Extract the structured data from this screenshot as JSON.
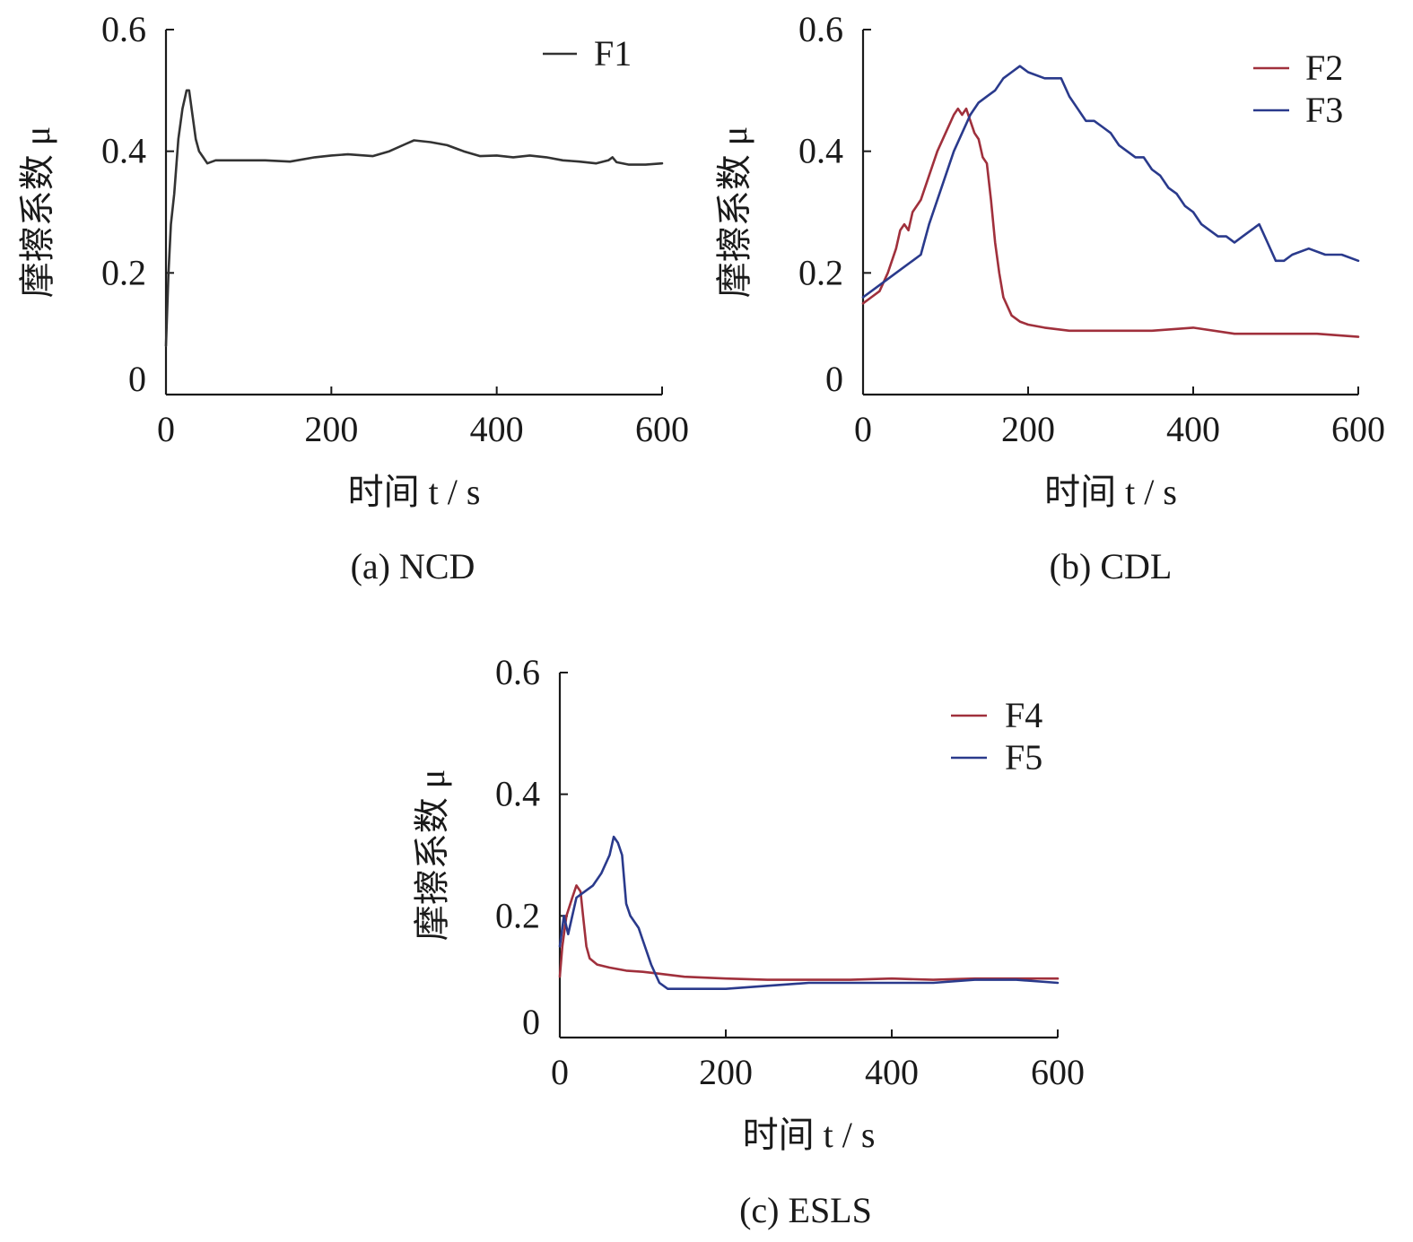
{
  "chart_data": [
    {
      "type": "line",
      "caption": "(a) NCD",
      "xlabel": "时间 t / s",
      "ylabel": "摩擦系数 μ",
      "xlim": [
        0,
        600
      ],
      "ylim": [
        0,
        0.6
      ],
      "x_ticks": [
        0,
        200,
        400,
        600
      ],
      "y_ticks": [
        0,
        0.2,
        0.4,
        0.6
      ],
      "x_tick_labels": [
        "0",
        "200",
        "400",
        "600"
      ],
      "y_tick_labels": [
        "0",
        "0.2",
        "0.4",
        "0.6"
      ],
      "grid": false,
      "legend_position": "top-right",
      "series": [
        {
          "name": "F1",
          "color": "#333333",
          "points": [
            [
              0,
              0.08
            ],
            [
              3,
              0.2
            ],
            [
              6,
              0.28
            ],
            [
              10,
              0.33
            ],
            [
              15,
              0.42
            ],
            [
              20,
              0.47
            ],
            [
              25,
              0.5
            ],
            [
              28,
              0.5
            ],
            [
              32,
              0.46
            ],
            [
              36,
              0.42
            ],
            [
              40,
              0.4
            ],
            [
              45,
              0.39
            ],
            [
              50,
              0.38
            ],
            [
              60,
              0.385
            ],
            [
              80,
              0.385
            ],
            [
              100,
              0.385
            ],
            [
              120,
              0.385
            ],
            [
              150,
              0.383
            ],
            [
              180,
              0.39
            ],
            [
              200,
              0.393
            ],
            [
              220,
              0.395
            ],
            [
              250,
              0.392
            ],
            [
              270,
              0.4
            ],
            [
              290,
              0.412
            ],
            [
              300,
              0.418
            ],
            [
              320,
              0.415
            ],
            [
              340,
              0.41
            ],
            [
              360,
              0.4
            ],
            [
              380,
              0.392
            ],
            [
              400,
              0.393
            ],
            [
              420,
              0.39
            ],
            [
              440,
              0.393
            ],
            [
              460,
              0.39
            ],
            [
              480,
              0.385
            ],
            [
              500,
              0.383
            ],
            [
              520,
              0.38
            ],
            [
              535,
              0.385
            ],
            [
              540,
              0.39
            ],
            [
              545,
              0.382
            ],
            [
              560,
              0.378
            ],
            [
              580,
              0.378
            ],
            [
              600,
              0.38
            ]
          ]
        }
      ]
    },
    {
      "type": "line",
      "caption": "(b) CDL",
      "xlabel": "时间 t / s",
      "ylabel": "摩擦系数 μ",
      "xlim": [
        0,
        600
      ],
      "ylim": [
        0,
        0.6
      ],
      "x_ticks": [
        0,
        200,
        400,
        600
      ],
      "y_ticks": [
        0,
        0.2,
        0.4,
        0.6
      ],
      "x_tick_labels": [
        "0",
        "200",
        "400",
        "600"
      ],
      "y_tick_labels": [
        "0",
        "0.2",
        "0.4",
        "0.6"
      ],
      "grid": false,
      "legend_position": "top-right",
      "series": [
        {
          "name": "F2",
          "color": "#a0303c",
          "points": [
            [
              0,
              0.15
            ],
            [
              10,
              0.16
            ],
            [
              20,
              0.17
            ],
            [
              30,
              0.2
            ],
            [
              40,
              0.24
            ],
            [
              45,
              0.27
            ],
            [
              50,
              0.28
            ],
            [
              55,
              0.27
            ],
            [
              60,
              0.3
            ],
            [
              70,
              0.32
            ],
            [
              80,
              0.36
            ],
            [
              90,
              0.4
            ],
            [
              100,
              0.43
            ],
            [
              110,
              0.46
            ],
            [
              115,
              0.47
            ],
            [
              120,
              0.46
            ],
            [
              125,
              0.47
            ],
            [
              130,
              0.45
            ],
            [
              135,
              0.43
            ],
            [
              140,
              0.42
            ],
            [
              145,
              0.39
            ],
            [
              150,
              0.38
            ],
            [
              155,
              0.32
            ],
            [
              160,
              0.25
            ],
            [
              165,
              0.2
            ],
            [
              170,
              0.16
            ],
            [
              180,
              0.13
            ],
            [
              190,
              0.12
            ],
            [
              200,
              0.115
            ],
            [
              220,
              0.11
            ],
            [
              250,
              0.105
            ],
            [
              280,
              0.105
            ],
            [
              300,
              0.105
            ],
            [
              350,
              0.105
            ],
            [
              400,
              0.11
            ],
            [
              450,
              0.1
            ],
            [
              500,
              0.1
            ],
            [
              550,
              0.1
            ],
            [
              600,
              0.095
            ]
          ]
        },
        {
          "name": "F3",
          "color": "#2a3a8c",
          "points": [
            [
              0,
              0.16
            ],
            [
              20,
              0.18
            ],
            [
              40,
              0.2
            ],
            [
              60,
              0.22
            ],
            [
              70,
              0.23
            ],
            [
              80,
              0.28
            ],
            [
              90,
              0.32
            ],
            [
              100,
              0.36
            ],
            [
              110,
              0.4
            ],
            [
              120,
              0.43
            ],
            [
              130,
              0.46
            ],
            [
              140,
              0.48
            ],
            [
              150,
              0.49
            ],
            [
              160,
              0.5
            ],
            [
              170,
              0.52
            ],
            [
              180,
              0.53
            ],
            [
              190,
              0.54
            ],
            [
              200,
              0.53
            ],
            [
              220,
              0.52
            ],
            [
              240,
              0.52
            ],
            [
              250,
              0.49
            ],
            [
              260,
              0.47
            ],
            [
              270,
              0.45
            ],
            [
              280,
              0.45
            ],
            [
              290,
              0.44
            ],
            [
              300,
              0.43
            ],
            [
              310,
              0.41
            ],
            [
              320,
              0.4
            ],
            [
              330,
              0.39
            ],
            [
              340,
              0.39
            ],
            [
              350,
              0.37
            ],
            [
              360,
              0.36
            ],
            [
              370,
              0.34
            ],
            [
              380,
              0.33
            ],
            [
              390,
              0.31
            ],
            [
              400,
              0.3
            ],
            [
              410,
              0.28
            ],
            [
              420,
              0.27
            ],
            [
              430,
              0.26
            ],
            [
              440,
              0.26
            ],
            [
              450,
              0.25
            ],
            [
              460,
              0.26
            ],
            [
              470,
              0.27
            ],
            [
              480,
              0.28
            ],
            [
              490,
              0.25
            ],
            [
              500,
              0.22
            ],
            [
              510,
              0.22
            ],
            [
              520,
              0.23
            ],
            [
              540,
              0.24
            ],
            [
              560,
              0.23
            ],
            [
              580,
              0.23
            ],
            [
              600,
              0.22
            ]
          ]
        }
      ]
    },
    {
      "type": "line",
      "caption": "(c) ESLS",
      "xlabel": "时间 t / s",
      "ylabel": "摩擦系数 μ",
      "xlim": [
        0,
        600
      ],
      "ylim": [
        0,
        0.6
      ],
      "x_ticks": [
        0,
        200,
        400,
        600
      ],
      "y_ticks": [
        0,
        0.2,
        0.4,
        0.6
      ],
      "x_tick_labels": [
        "0",
        "200",
        "400",
        "600"
      ],
      "y_tick_labels": [
        "0",
        "0.2",
        "0.4",
        "0.6"
      ],
      "grid": false,
      "legend_position": "top-right",
      "series": [
        {
          "name": "F4",
          "color": "#a0303c",
          "points": [
            [
              0,
              0.1
            ],
            [
              3,
              0.15
            ],
            [
              8,
              0.2
            ],
            [
              15,
              0.23
            ],
            [
              20,
              0.25
            ],
            [
              25,
              0.24
            ],
            [
              28,
              0.2
            ],
            [
              32,
              0.15
            ],
            [
              36,
              0.13
            ],
            [
              45,
              0.12
            ],
            [
              60,
              0.115
            ],
            [
              80,
              0.11
            ],
            [
              100,
              0.108
            ],
            [
              120,
              0.105
            ],
            [
              150,
              0.1
            ],
            [
              200,
              0.097
            ],
            [
              250,
              0.095
            ],
            [
              300,
              0.095
            ],
            [
              350,
              0.095
            ],
            [
              400,
              0.097
            ],
            [
              450,
              0.095
            ],
            [
              500,
              0.097
            ],
            [
              550,
              0.097
            ],
            [
              600,
              0.097
            ]
          ]
        },
        {
          "name": "F5",
          "color": "#2a3a8c",
          "points": [
            [
              0,
              0.15
            ],
            [
              5,
              0.2
            ],
            [
              10,
              0.17
            ],
            [
              15,
              0.2
            ],
            [
              20,
              0.23
            ],
            [
              30,
              0.24
            ],
            [
              40,
              0.25
            ],
            [
              50,
              0.27
            ],
            [
              60,
              0.3
            ],
            [
              65,
              0.33
            ],
            [
              70,
              0.32
            ],
            [
              75,
              0.3
            ],
            [
              80,
              0.22
            ],
            [
              85,
              0.2
            ],
            [
              90,
              0.19
            ],
            [
              95,
              0.18
            ],
            [
              100,
              0.16
            ],
            [
              110,
              0.12
            ],
            [
              120,
              0.09
            ],
            [
              130,
              0.08
            ],
            [
              150,
              0.08
            ],
            [
              170,
              0.08
            ],
            [
              200,
              0.08
            ],
            [
              250,
              0.085
            ],
            [
              300,
              0.09
            ],
            [
              350,
              0.09
            ],
            [
              400,
              0.09
            ],
            [
              450,
              0.09
            ],
            [
              500,
              0.095
            ],
            [
              550,
              0.095
            ],
            [
              600,
              0.09
            ]
          ]
        }
      ]
    }
  ]
}
